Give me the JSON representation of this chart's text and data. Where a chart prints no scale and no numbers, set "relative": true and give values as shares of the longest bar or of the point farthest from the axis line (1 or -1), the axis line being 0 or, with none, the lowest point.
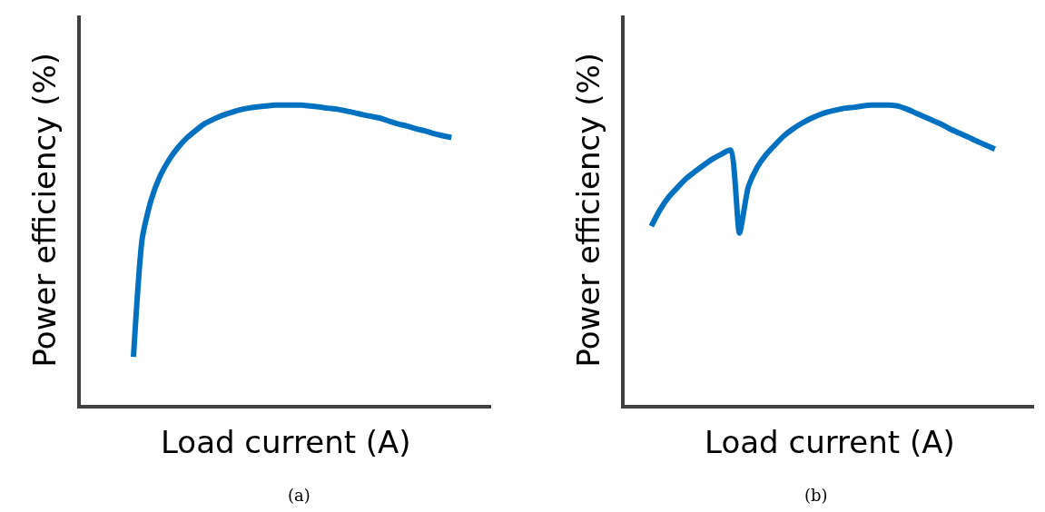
{
  "chart_data": [
    {
      "type": "line",
      "relative": true,
      "xlabel": "Load current (A)",
      "ylabel": "Power efficiency (%)",
      "annotations": [
        "(a)"
      ],
      "tick_labels": false,
      "marker": "none",
      "line_style": "solid",
      "categories": [
        null,
        null,
        null,
        null,
        null,
        null,
        null,
        null,
        null,
        null,
        null,
        null,
        null,
        null,
        null,
        null,
        null,
        null,
        null,
        null,
        null,
        null,
        null,
        null,
        null,
        null,
        null,
        null,
        null,
        null,
        null,
        null,
        null,
        null,
        null,
        null,
        null,
        null,
        null,
        null,
        null,
        null,
        null,
        null,
        null,
        null
      ],
      "series": [
        {
          "color": "#0070c0",
          "values": [
            null,
            null,
            null,
            null,
            null,
            0.159,
            0.556,
            0.683,
            0.762,
            0.816,
            0.857,
            0.889,
            0.914,
            0.937,
            0.952,
            0.965,
            0.975,
            0.984,
            0.99,
            0.994,
            0.997,
            1.0,
            1.0,
            1.0,
            1.0,
            0.997,
            0.994,
            0.99,
            0.987,
            0.981,
            0.975,
            0.968,
            0.962,
            0.956,
            0.946,
            0.937,
            0.93,
            0.921,
            0.914,
            0.905,
            0.898,
            0.892,
            null,
            null,
            null,
            null
          ]
        }
      ]
    },
    {
      "type": "line",
      "relative": true,
      "xlabel": "Load current (A)",
      "ylabel": "Power efficiency (%)",
      "annotations": [
        "(b)"
      ],
      "tick_labels": false,
      "marker": "none",
      "line_style": "solid",
      "categories": [
        null,
        null,
        null,
        null,
        null,
        null,
        null,
        null,
        null,
        null,
        null,
        null,
        null,
        null,
        null,
        null,
        null,
        null,
        null,
        null,
        null,
        null,
        null,
        null,
        null,
        null,
        null,
        null,
        null,
        null,
        null,
        null,
        null,
        null,
        null,
        null,
        null,
        null,
        null,
        null,
        null,
        null,
        null,
        null,
        null,
        null
      ],
      "series": [
        {
          "color": "#0070c0",
          "values": [
            null,
            null,
            0.596,
            0.651,
            0.694,
            0.726,
            0.756,
            0.779,
            0.801,
            0.821,
            0.837,
            0.85,
            0.573,
            0.726,
            0.792,
            0.834,
            0.866,
            0.896,
            0.919,
            0.938,
            0.954,
            0.967,
            0.977,
            0.984,
            0.99,
            0.993,
            0.997,
            1.0,
            1.0,
            1.0,
            0.997,
            0.987,
            0.974,
            0.961,
            0.948,
            0.935,
            0.919,
            0.906,
            0.893,
            0.879,
            0.866,
            0.853,
            null,
            null,
            null,
            null
          ]
        }
      ]
    }
  ]
}
